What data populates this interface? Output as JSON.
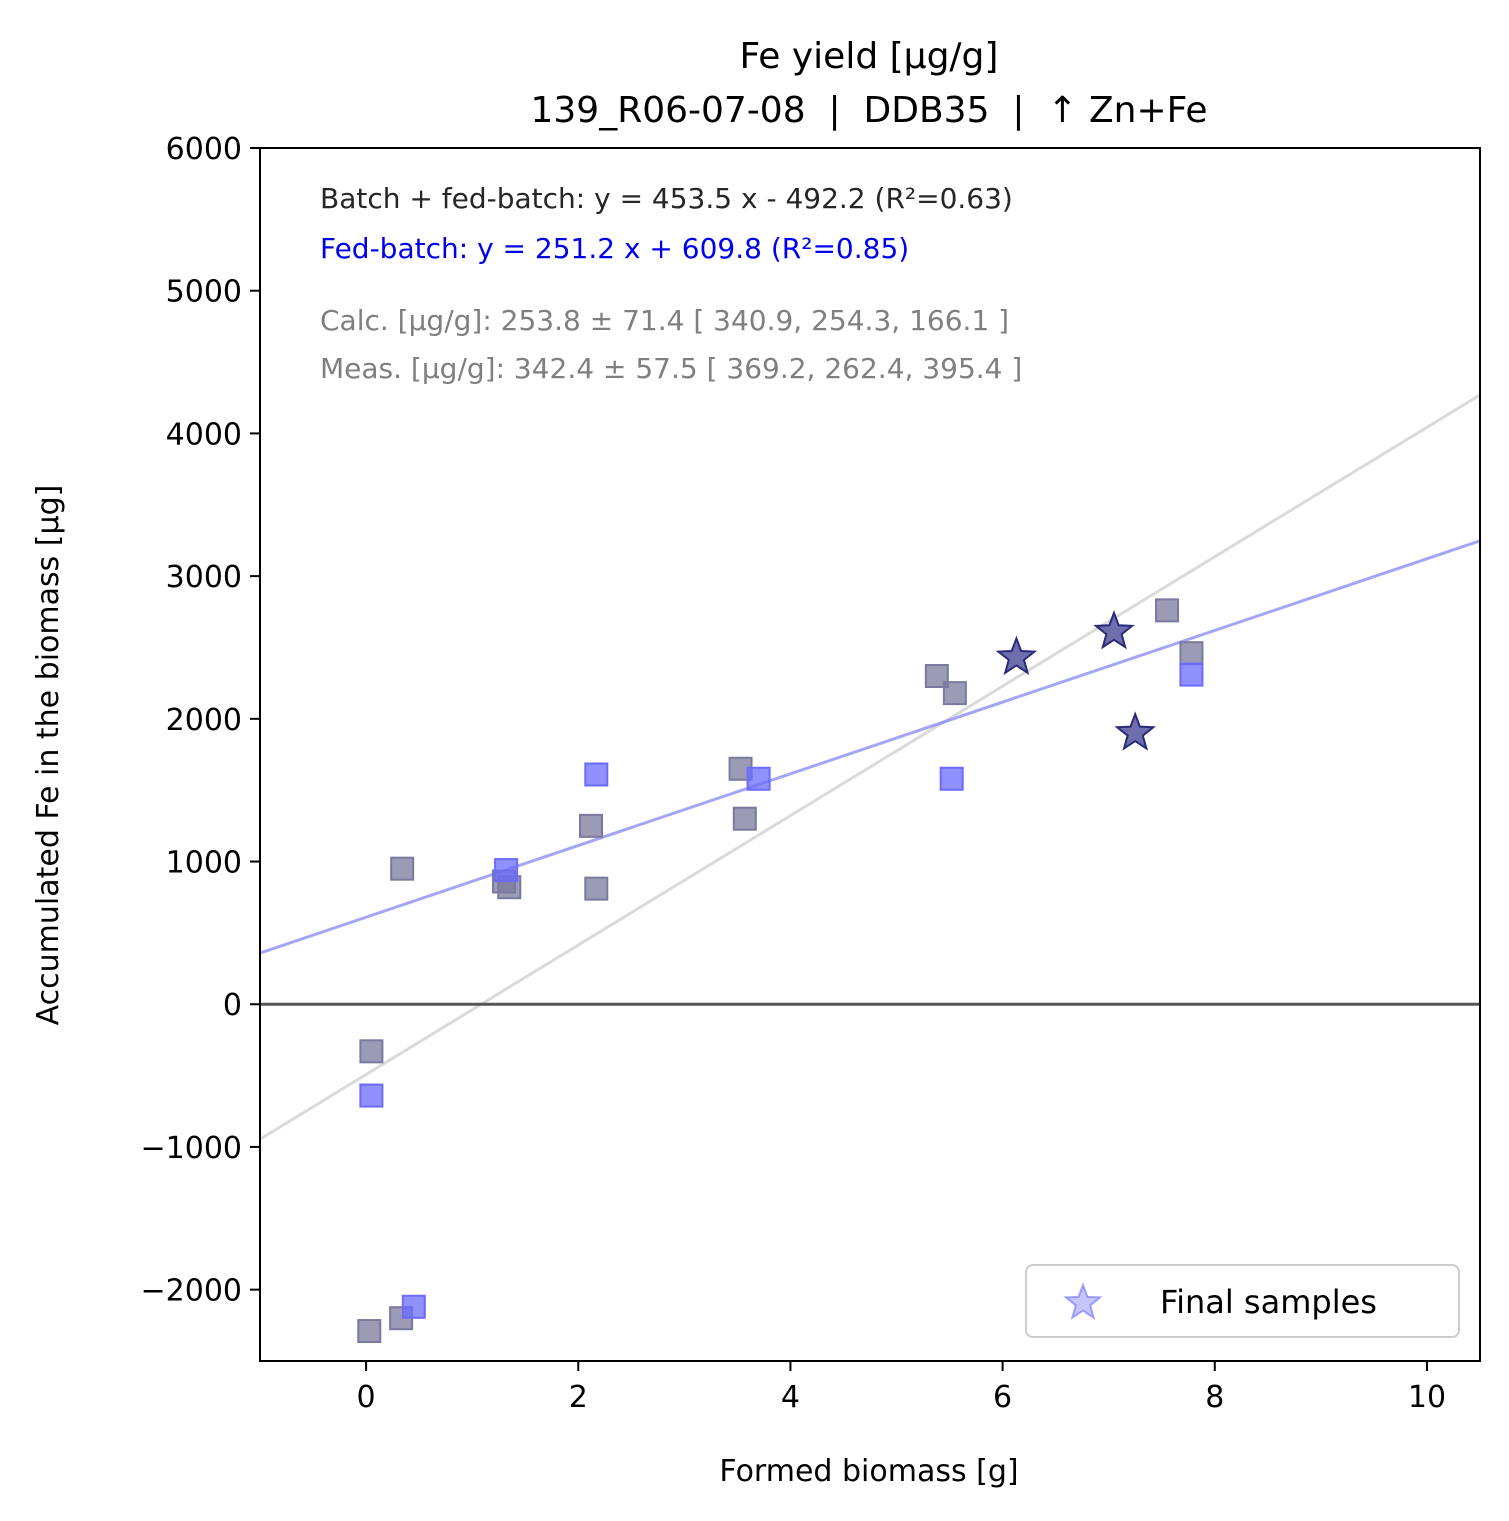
{
  "chart_data": {
    "type": "scatter",
    "title": "Fe yield [µg/g]",
    "subtitle": "139_R06-07-08  |  DDB35  |  ↑ Zn+Fe",
    "xlabel": "Formed biomass [g]",
    "ylabel": "Accumulated Fe in the biomass [µg]",
    "xlim": [
      -1,
      10.5
    ],
    "ylim": [
      -2500,
      6000
    ],
    "xticks": [
      0,
      2,
      4,
      6,
      8,
      10
    ],
    "yticks": [
      -2000,
      -1000,
      0,
      1000,
      2000,
      3000,
      4000,
      5000,
      6000
    ],
    "ytick_labels": [
      "−2000",
      "−1000",
      "0",
      "1000",
      "2000",
      "3000",
      "4000",
      "5000",
      "6000"
    ],
    "annotations": {
      "batch_fit": "Batch + fed-batch: y = 453.5 x - 492.2 (R²=0.63)",
      "fedbatch_fit": "Fed-batch: y = 251.2 x + 609.8 (R²=0.85)",
      "calc": "Calc. [µg/g]: 253.8 ± 71.4 [ 340.9, 254.3, 166.1 ]",
      "meas": "Meas. [µg/g]: 342.4 ± 57.5 [ 369.2, 262.4, 395.4 ]"
    },
    "grid": false,
    "legend_position": "lower-right",
    "legend_entries": [
      "Final samples"
    ],
    "fit_lines": [
      {
        "slope": 453.5,
        "intercept": -492.2,
        "color": "#bbbbbb"
      },
      {
        "slope": 251.2,
        "intercept": 609.8,
        "color": "#7f7ff5"
      }
    ],
    "zero_line": 0,
    "series": [
      {
        "marker": "square",
        "color": "#7a7a9e",
        "x": [
          0.05,
          0.33,
          0.34,
          1.3,
          1.35,
          2.12,
          2.17,
          3.53,
          3.57,
          5.38,
          5.55,
          7.55,
          7.78
        ],
        "y": [
          -330,
          -2200,
          950,
          860,
          820,
          1250,
          810,
          1650,
          1300,
          2300,
          2180,
          2760,
          2460
        ]
      },
      {
        "marker": "square",
        "color": "#6b6bff",
        "x": [
          0.05,
          0.45,
          1.32,
          2.17,
          3.7,
          5.52,
          7.78
        ],
        "y": [
          -640,
          -2120,
          940,
          1610,
          1580,
          1580,
          2310
        ]
      },
      {
        "name": "Final samples",
        "marker": "star",
        "color": "#55559f",
        "x": [
          6.13,
          7.05,
          7.25
        ],
        "y": [
          2430,
          2610,
          1900
        ]
      },
      {
        "marker": "square",
        "color": "#7a7a9e",
        "x": [
          0.03
        ],
        "y": [
          -2290
        ]
      }
    ]
  }
}
